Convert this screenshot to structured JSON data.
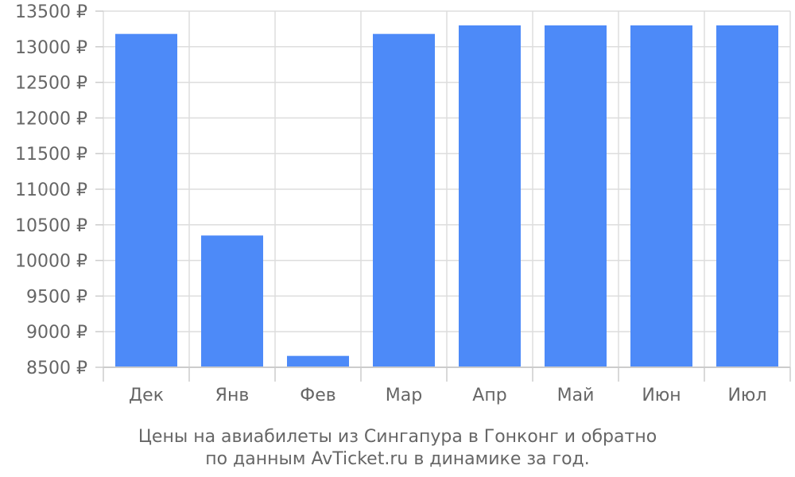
{
  "chart_data": {
    "type": "bar",
    "categories": [
      "Дек",
      "Янв",
      "Фев",
      "Мар",
      "Апр",
      "Май",
      "Июн",
      "Июл"
    ],
    "values": [
      13180,
      10350,
      8660,
      13180,
      13300,
      13300,
      13300,
      13300
    ],
    "ylim": [
      8500,
      13500
    ],
    "yticks": [
      8500,
      9000,
      9500,
      10000,
      10500,
      11000,
      11500,
      12000,
      12500,
      13000,
      13500
    ],
    "y_tick_suffix": " ₽",
    "caption_lines": [
      "Цены на авиабилеты из Сингапура в Гонконг и обратно",
      "по данным AvTicket.ru в динамике за год."
    ],
    "grid": true,
    "colors": {
      "bar": "#4d8af8",
      "grid": "#dddddd",
      "axis": "#cccccc",
      "text": "#666666"
    }
  }
}
